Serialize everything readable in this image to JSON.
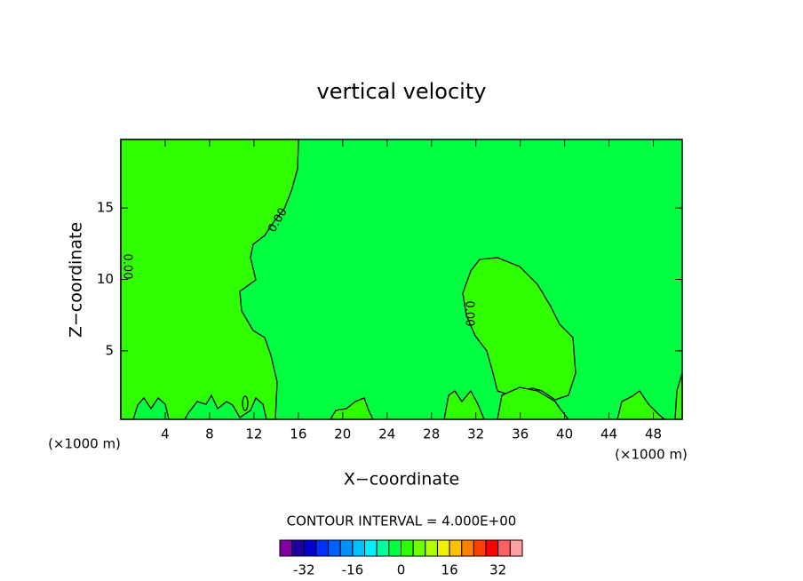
{
  "chart_data": {
    "type": "contour",
    "title": "vertical velocity",
    "x_label": "X−coordinate",
    "y_label": "Z−coordinate",
    "x_unit": "(×1000 m)",
    "y_unit": "(×1000 m)",
    "xlim": [
      0,
      50.6
    ],
    "ylim": [
      0.2,
      19.8
    ],
    "xticks": [
      4,
      8,
      12,
      16,
      20,
      24,
      28,
      32,
      36,
      40,
      44,
      48
    ],
    "yticks": [
      5,
      10,
      15
    ],
    "contour_labels": [
      "0.00",
      "0.00",
      "0.00"
    ],
    "contour_interval": "CONTOUR INTERVAL = 4.000E+00",
    "colorbar": {
      "levels": [
        -40,
        -36,
        -32,
        -28,
        -24,
        -20,
        -16,
        -12,
        -8,
        -4,
        0,
        4,
        8,
        12,
        16,
        20,
        24,
        28,
        32,
        36,
        40
      ],
      "colors": [
        "#8000a0",
        "#2000a0",
        "#0000d0",
        "#0030ff",
        "#0060ff",
        "#0090ff",
        "#00c0ff",
        "#00f0ff",
        "#00ffa0",
        "#00ff40",
        "#30ff00",
        "#70ff00",
        "#b0ff00",
        "#f0f000",
        "#ffc000",
        "#ff8000",
        "#ff4000",
        "#ff0000",
        "#ff6060",
        "#ffa0a0"
      ],
      "ticks": [
        -32,
        -16,
        0,
        16,
        32
      ]
    }
  }
}
